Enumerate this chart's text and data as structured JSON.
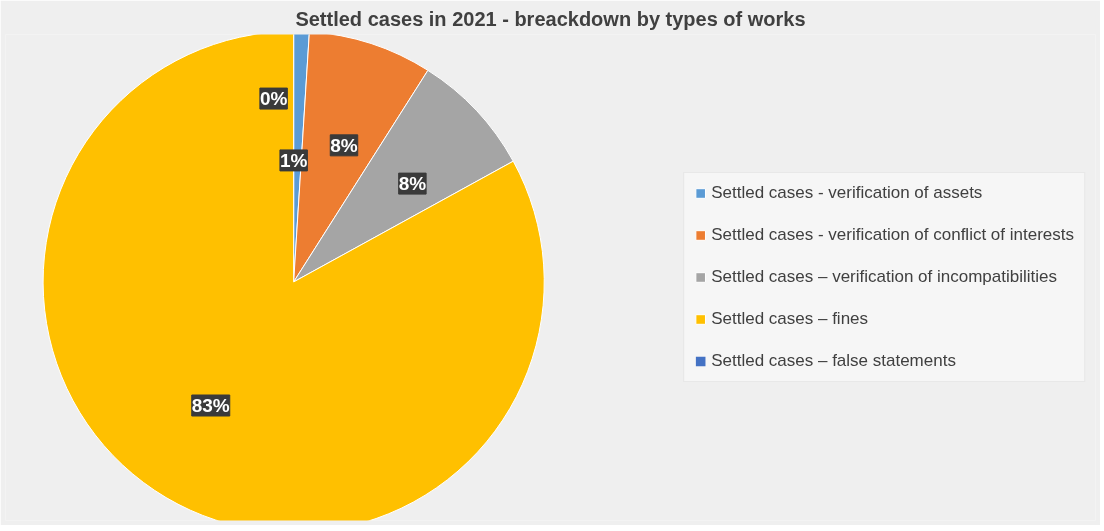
{
  "chart_data": {
    "type": "pie",
    "title": "Settled cases in 2021 - breackdown by types of works",
    "categories": [
      "Settled cases - verification of assets",
      "Settled cases - verification of conflict of interests",
      "Settled cases – verification of incompatibilities",
      "Settled cases – fines",
      "Settled cases – false statements"
    ],
    "values": [
      1,
      8,
      8,
      83,
      0
    ],
    "colors": [
      "#5b9bd5",
      "#ed7d31",
      "#a5a5a5",
      "#ffc000",
      "#4472c4"
    ],
    "value_labels": [
      "1%",
      "8%",
      "8%",
      "83%",
      "0%"
    ],
    "legend": "right"
  }
}
